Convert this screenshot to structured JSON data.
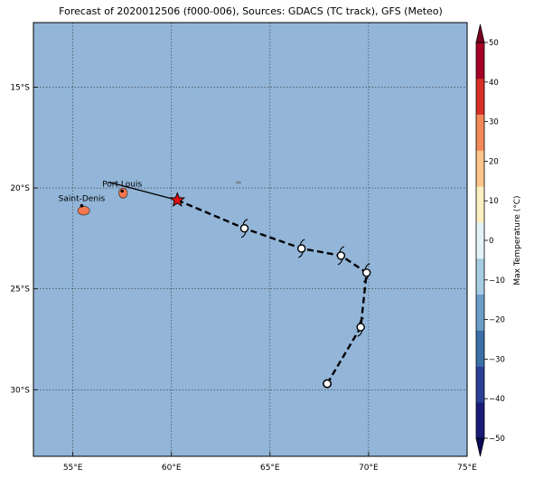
{
  "title": "Forecast of 2020012506 (f000-006), Sources: GDACS (TC track), GFS (Meteo)",
  "map": {
    "lon_range": [
      53,
      75
    ],
    "lat_range": [
      -33.3,
      -11.8
    ],
    "ocean_color": "#92b5d8",
    "grid": true,
    "lon_ticks": [
      {
        "value": 55,
        "label": "55°E"
      },
      {
        "value": 60,
        "label": "60°E"
      },
      {
        "value": 65,
        "label": "65°E"
      },
      {
        "value": 70,
        "label": "70°E"
      },
      {
        "value": 75,
        "label": "75°E"
      }
    ],
    "lat_ticks": [
      {
        "value": -15,
        "label": "15°S"
      },
      {
        "value": -20,
        "label": "20°S"
      },
      {
        "value": -25,
        "label": "25°S"
      },
      {
        "value": -30,
        "label": "30°S"
      }
    ],
    "cities": [
      {
        "name": "Port Louis",
        "lon": 57.5,
        "lat": -20.15
      },
      {
        "name": "Saint-Denis",
        "lon": 55.45,
        "lat": -20.88
      }
    ],
    "islands": [
      {
        "name_ref": "mauritius",
        "lon": 57.55,
        "lat": -20.25,
        "rx_deg": 0.22,
        "ry_deg": 0.25,
        "color": "#f4774f"
      },
      {
        "name_ref": "reunion",
        "lon": 55.55,
        "lat": -21.12,
        "rx_deg": 0.3,
        "ry_deg": 0.22,
        "color": "#f4774f"
      },
      {
        "name_ref": "rodrigues",
        "lon": 63.4,
        "lat": -19.72,
        "rx_deg": 0.1,
        "ry_deg": 0.04,
        "color": "#e8e8e8"
      }
    ],
    "past_track": [
      {
        "lon": 56.8,
        "lat": -19.7
      },
      {
        "lon": 60.3,
        "lat": -20.6
      }
    ],
    "current_position": {
      "lon": 60.3,
      "lat": -20.6,
      "color": "#e01010"
    },
    "forecast_track": [
      {
        "lon": 60.3,
        "lat": -20.6
      },
      {
        "lon": 63.7,
        "lat": -22.0
      },
      {
        "lon": 66.6,
        "lat": -23.0
      },
      {
        "lon": 68.6,
        "lat": -23.35
      },
      {
        "lon": 69.9,
        "lat": -24.2
      },
      {
        "lon": 69.6,
        "lat": -26.9
      },
      {
        "lon": 67.9,
        "lat": -29.7
      }
    ],
    "cyclone_symbols": [
      {
        "lon": 63.7,
        "lat": -22.0
      },
      {
        "lon": 66.6,
        "lat": -23.0
      },
      {
        "lon": 68.6,
        "lat": -23.35
      },
      {
        "lon": 69.9,
        "lat": -24.2
      },
      {
        "lon": 69.6,
        "lat": -26.9
      }
    ],
    "low_symbol": {
      "lon": 67.9,
      "lat": -29.7
    }
  },
  "colorbar": {
    "label": "Max Temperature (°C)",
    "min": -50,
    "max": 50,
    "tick_values": [
      -50,
      -40,
      -30,
      -20,
      -10,
      0,
      10,
      20,
      30,
      40,
      50
    ],
    "tick_labels": [
      "−50",
      "−40",
      "−30",
      "−20",
      "−10",
      "0",
      "10",
      "20",
      "30",
      "40",
      "50"
    ],
    "colors": [
      "#1b1b78",
      "#2a3f96",
      "#3b6fa8",
      "#6a9ec9",
      "#a6cde3",
      "#e4f3f8",
      "#fdf0c2",
      "#fdc587",
      "#f48a59",
      "#d73027",
      "#a50026"
    ],
    "under_color": "#0a0a5a",
    "over_color": "#7a0022"
  }
}
